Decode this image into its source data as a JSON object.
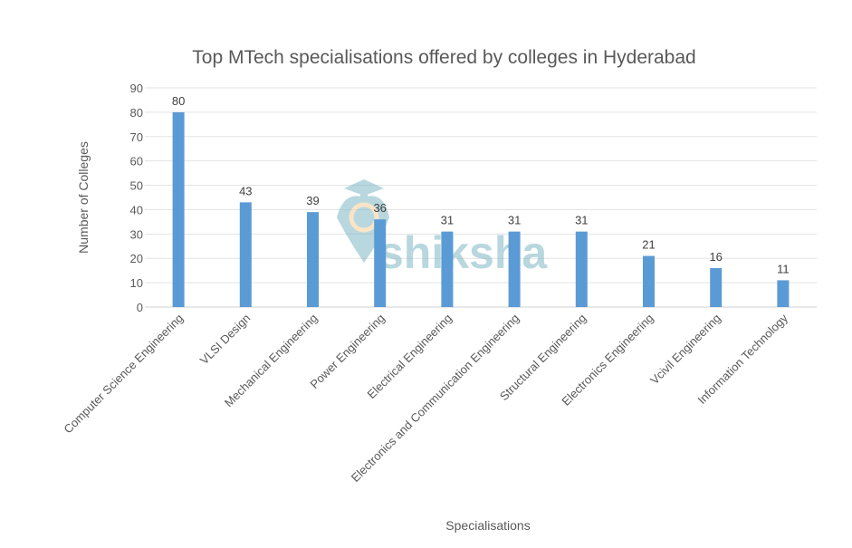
{
  "chart_data": {
    "type": "bar",
    "title": "Top MTech specialisations offered by colleges in Hyderabad",
    "xlabel": "Specialisations",
    "ylabel": "Number of Colleges",
    "categories": [
      "Computer Science Engineering",
      "VLSI Design",
      "Mechanical Engineering",
      "Power Engineering",
      "Electrical Engineering",
      "Electronics and Communication Engineering",
      "Structural Engineering",
      "Electronics Engineering",
      "Vcivil Engineering",
      "Information Technology"
    ],
    "values": [
      80,
      43,
      39,
      36,
      31,
      31,
      31,
      21,
      16,
      11
    ],
    "ylim": [
      0,
      90
    ],
    "yticks": [
      0,
      10,
      20,
      30,
      40,
      50,
      60,
      70,
      80,
      90
    ],
    "grid": true,
    "data_labels": true,
    "legend": null,
    "bar_color": "#5b9bd5"
  },
  "watermark": {
    "text": "shiksha",
    "color": "#7fb8c4"
  }
}
